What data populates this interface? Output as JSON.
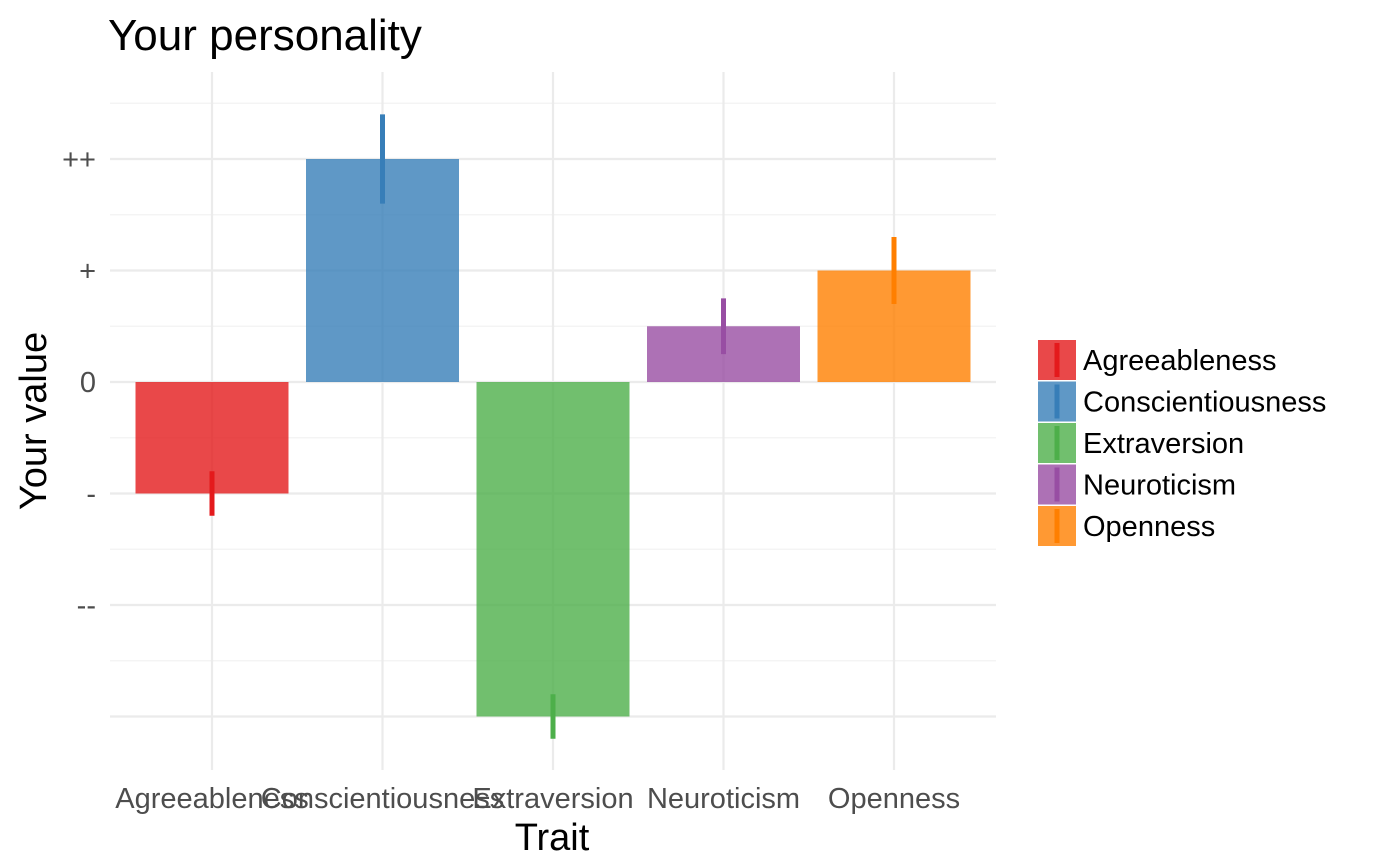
{
  "chart_data": {
    "type": "bar",
    "title": "Your personality",
    "xlabel": "Trait",
    "ylabel": "Your value",
    "categories": [
      "Agreeableness",
      "Conscientiousness",
      "Extraversion",
      "Neuroticism",
      "Openness"
    ],
    "values": [
      -1,
      2,
      -3,
      0.5,
      1
    ],
    "error_bars": [
      {
        "low": -1.2,
        "high": -0.8
      },
      {
        "low": 1.6,
        "high": 2.4
      },
      {
        "low": -3.2,
        "high": -2.8
      },
      {
        "low": 0.25,
        "high": 0.75
      },
      {
        "low": 0.7,
        "high": 1.3
      }
    ],
    "colors": [
      "#e41a1c",
      "#377eb8",
      "#4daf4a",
      "#984ea3",
      "#ff7f00"
    ],
    "bar_opacity": 0.8,
    "ylim": [
      -3.4,
      2.5
    ],
    "y_ticks": [
      {
        "value": 2,
        "label": "++"
      },
      {
        "value": 1,
        "label": "+"
      },
      {
        "value": 0,
        "label": "0"
      },
      {
        "value": -1,
        "label": "-"
      },
      {
        "value": -2,
        "label": "--"
      }
    ],
    "y_grid_extra": [
      -3
    ],
    "grid": true,
    "legend": {
      "position": "right",
      "entries": [
        "Agreeableness",
        "Conscientiousness",
        "Extraversion",
        "Neuroticism",
        "Openness"
      ]
    }
  }
}
